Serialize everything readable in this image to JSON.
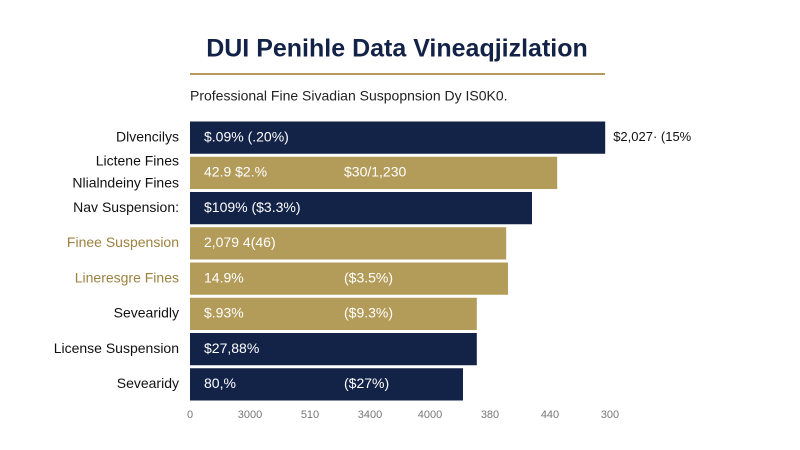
{
  "chart_data": {
    "type": "bar",
    "orientation": "horizontal",
    "title": "DUI Penihle Data Vineaqjizlation",
    "subtitle": "Professional Fine Sivadian Suspopnsion Dy IS0K0.",
    "categories": [
      [
        "Dlvencilys"
      ],
      [
        "Lictene Fines",
        "Nlialndeiny Fines"
      ],
      [
        "Nav Suspension:"
      ],
      [
        "Finee Suspension"
      ],
      [
        "Lineresgre Fines"
      ],
      [
        "Sevearidly"
      ],
      [
        "License Suspension"
      ],
      [
        "Sevearidy"
      ]
    ],
    "category_colors": [
      "#111111",
      "#111111",
      "#111111",
      "#9c8240",
      "#9c8240",
      "#111111",
      "#111111",
      "#111111"
    ],
    "values": [
      6.92,
      6.12,
      5.7,
      5.27,
      5.3,
      4.78,
      4.78,
      4.55
    ],
    "colors": [
      "#132247",
      "#b39b59",
      "#132247",
      "#b39b59",
      "#b39b59",
      "#b39b59",
      "#132247",
      "#132247"
    ],
    "inner_labels": [
      [
        "$.09% (.20%)"
      ],
      [
        "42.9  $2.%",
        "$30/1,230"
      ],
      [
        "$109% ($3.3%)"
      ],
      [
        "2,079  4(46)"
      ],
      [
        "14.9%",
        "($3.5%)"
      ],
      [
        "$.93%",
        "($9.3%)"
      ],
      [
        "$27,88%"
      ],
      [
        "80,%",
        "($27%)"
      ]
    ],
    "outside_labels": [
      "$2,027· (15%",
      null,
      null,
      null,
      null,
      null,
      null,
      null
    ],
    "xlim": [
      0,
      7
    ],
    "xticks": [
      0,
      {
        "value": 1,
        "label": "3000"
      },
      {
        "value": 2,
        "label": "510"
      },
      {
        "value": 3,
        "label": "3400"
      },
      {
        "value": 4,
        "label": "4000"
      },
      {
        "value": 5,
        "label": "380"
      },
      {
        "value": 6,
        "label": "440"
      },
      {
        "value": 7,
        "label": "300"
      }
    ]
  }
}
